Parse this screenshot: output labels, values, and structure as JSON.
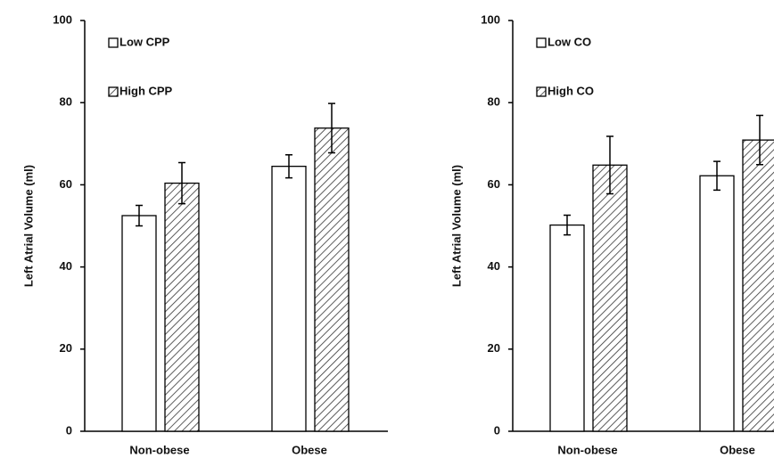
{
  "chart_data": [
    {
      "type": "bar",
      "ylabel": "Left Atrial Volume (ml)",
      "categories": [
        "Non-obese",
        "Obese"
      ],
      "series": [
        {
          "name": "Low CPP",
          "color": "#ffffff",
          "pattern": "solid",
          "values": [
            52.5,
            64.5
          ],
          "errors": [
            2.5,
            2.8
          ]
        },
        {
          "name": "High CPP",
          "color": "#ffffff",
          "pattern": "hatch",
          "values": [
            60.4,
            73.8
          ],
          "errors": [
            5,
            6
          ]
        }
      ],
      "ylim": [
        0,
        100
      ],
      "yticks": [
        0,
        20,
        40,
        60,
        80,
        100
      ]
    },
    {
      "type": "bar",
      "ylabel": "Left Atrial Volume (ml)",
      "categories": [
        "Non-obese",
        "Obese"
      ],
      "series": [
        {
          "name": "Low CO",
          "color": "#ffffff",
          "pattern": "solid",
          "values": [
            50.2,
            62.2
          ],
          "errors": [
            2.4,
            3.5
          ]
        },
        {
          "name": "High CO",
          "color": "#ffffff",
          "pattern": "hatch",
          "values": [
            64.8,
            70.9
          ],
          "errors": [
            7,
            6
          ]
        }
      ],
      "ylim": [
        0,
        100
      ],
      "yticks": [
        0,
        20,
        40,
        60,
        80,
        100
      ]
    }
  ]
}
